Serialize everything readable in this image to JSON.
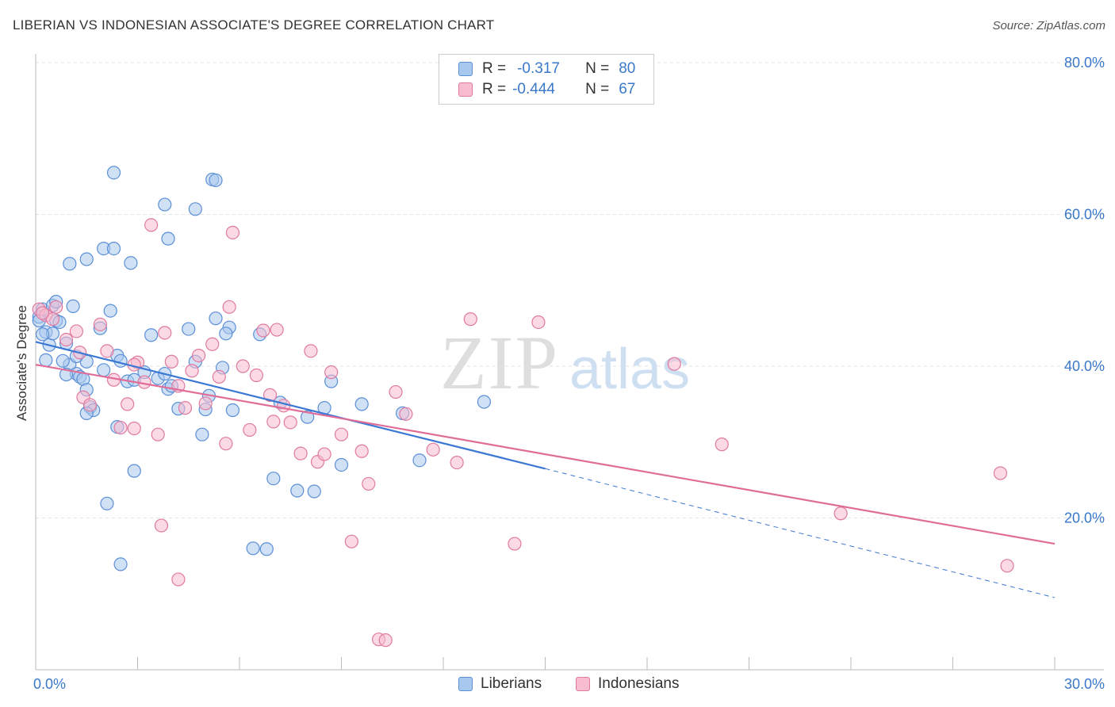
{
  "title": "LIBERIAN VS INDONESIAN ASSOCIATE'S DEGREE CORRELATION CHART",
  "source": "Source: ZipAtlas.com",
  "watermark": {
    "zip": "ZIP",
    "atlas": "atlas"
  },
  "legend": {
    "rows": [
      {
        "r_label": "R =",
        "r_value": "-0.317",
        "n_label": "N =",
        "n_value": "80",
        "color": "#a9c8ee",
        "stroke": "#5b8fd6"
      },
      {
        "r_label": "R =",
        "r_value": "-0.444",
        "n_label": "N =",
        "n_value": "67",
        "color": "#f7bcd0",
        "stroke": "#e07aa0"
      }
    ]
  },
  "bottom_legend": [
    {
      "label": "Liberians",
      "color": "#a9c8ee",
      "stroke": "#5b8fd6"
    },
    {
      "label": "Indonesians",
      "color": "#f7bcd0",
      "stroke": "#e07aa0"
    }
  ],
  "chart_data": {
    "type": "scatter",
    "title": "LIBERIAN VS INDONESIAN ASSOCIATE'S DEGREE CORRELATION CHART",
    "xlabel": "",
    "ylabel": "Associate's Degree",
    "xlim": [
      0,
      30
    ],
    "ylim": [
      0,
      80
    ],
    "x_tick_labels": [
      "0.0%",
      "30.0%"
    ],
    "y_tick_labels": [
      "20.0%",
      "40.0%",
      "60.0%",
      "80.0%"
    ],
    "y_ticks": [
      20,
      40,
      60,
      80
    ],
    "grid": true,
    "legend_position": "top-center",
    "series": [
      {
        "name": "Liberians",
        "color": "#a9c8ee",
        "stroke": "#5b8fd6",
        "trend": {
          "x": [
            0,
            15
          ],
          "y": [
            43.2,
            26.5
          ],
          "dashed_to": [
            30,
            9.5
          ],
          "color": "#3a78d4"
        },
        "points": [
          [
            0.1,
            46.5
          ],
          [
            0.2,
            47.5
          ],
          [
            0.3,
            44.5
          ],
          [
            0.4,
            42.8
          ],
          [
            0.5,
            48.0
          ],
          [
            0.6,
            46.0
          ],
          [
            0.7,
            45.8
          ],
          [
            0.5,
            44.3
          ],
          [
            0.3,
            40.8
          ],
          [
            0.9,
            43.0
          ],
          [
            1.1,
            47.9
          ],
          [
            1.0,
            40.2
          ],
          [
            1.2,
            39.0
          ],
          [
            1.3,
            38.6
          ],
          [
            1.4,
            38.3
          ],
          [
            1.5,
            40.6
          ],
          [
            1.6,
            34.6
          ],
          [
            1.7,
            34.2
          ],
          [
            1.5,
            33.8
          ],
          [
            1.9,
            45.0
          ],
          [
            2.2,
            47.3
          ],
          [
            2.4,
            41.4
          ],
          [
            2.0,
            39.5
          ],
          [
            2.7,
            38.0
          ],
          [
            2.5,
            40.7
          ],
          [
            2.9,
            38.2
          ],
          [
            3.2,
            39.2
          ],
          [
            3.4,
            44.1
          ],
          [
            3.6,
            38.4
          ],
          [
            3.9,
            37.0
          ],
          [
            3.8,
            39.0
          ],
          [
            4.0,
            37.4
          ],
          [
            4.2,
            34.4
          ],
          [
            4.5,
            44.9
          ],
          [
            4.7,
            40.6
          ],
          [
            4.9,
            31.0
          ],
          [
            5.0,
            34.3
          ],
          [
            5.1,
            36.1
          ],
          [
            5.3,
            46.3
          ],
          [
            5.5,
            39.8
          ],
          [
            5.7,
            45.1
          ],
          [
            5.6,
            44.3
          ],
          [
            5.8,
            34.2
          ],
          [
            6.6,
            44.2
          ],
          [
            7.0,
            25.2
          ],
          [
            6.4,
            16.0
          ],
          [
            6.8,
            15.9
          ],
          [
            7.2,
            35.2
          ],
          [
            7.7,
            23.6
          ],
          [
            8.0,
            33.3
          ],
          [
            8.2,
            23.5
          ],
          [
            8.5,
            34.5
          ],
          [
            8.7,
            38.0
          ],
          [
            9.0,
            27.0
          ],
          [
            9.6,
            35.0
          ],
          [
            10.8,
            33.8
          ],
          [
            11.3,
            27.6
          ],
          [
            13.2,
            35.3
          ],
          [
            1.0,
            53.5
          ],
          [
            1.5,
            54.1
          ],
          [
            2.0,
            55.5
          ],
          [
            2.3,
            55.5
          ],
          [
            2.8,
            53.6
          ],
          [
            2.3,
            65.5
          ],
          [
            3.8,
            61.3
          ],
          [
            3.9,
            56.8
          ],
          [
            4.7,
            60.7
          ],
          [
            5.2,
            64.6
          ],
          [
            5.3,
            64.5
          ],
          [
            2.1,
            21.9
          ],
          [
            2.5,
            13.9
          ],
          [
            2.9,
            26.2
          ],
          [
            2.4,
            32.0
          ],
          [
            1.5,
            36.9
          ],
          [
            0.8,
            40.7
          ],
          [
            0.9,
            38.9
          ],
          [
            0.1,
            46.0
          ],
          [
            0.6,
            48.5
          ],
          [
            0.2,
            44.2
          ],
          [
            1.2,
            41.3
          ]
        ]
      },
      {
        "name": "Indonesians",
        "color": "#f7bcd0",
        "stroke": "#e07aa0",
        "trend": {
          "x": [
            0,
            30
          ],
          "y": [
            40.2,
            16.6
          ],
          "color": "#e06c98"
        },
        "points": [
          [
            0.1,
            47.5
          ],
          [
            0.3,
            46.7
          ],
          [
            0.5,
            46.2
          ],
          [
            0.6,
            47.8
          ],
          [
            0.9,
            43.5
          ],
          [
            1.2,
            44.6
          ],
          [
            1.3,
            41.8
          ],
          [
            1.4,
            35.9
          ],
          [
            1.6,
            34.9
          ],
          [
            1.9,
            45.5
          ],
          [
            2.1,
            42.0
          ],
          [
            2.3,
            38.2
          ],
          [
            2.5,
            31.9
          ],
          [
            2.7,
            35.0
          ],
          [
            2.9,
            31.8
          ],
          [
            3.0,
            40.5
          ],
          [
            3.2,
            37.9
          ],
          [
            3.4,
            58.6
          ],
          [
            3.6,
            31.0
          ],
          [
            3.8,
            44.4
          ],
          [
            4.0,
            40.6
          ],
          [
            4.2,
            37.4
          ],
          [
            4.4,
            34.5
          ],
          [
            4.6,
            39.4
          ],
          [
            4.8,
            41.4
          ],
          [
            5.0,
            35.1
          ],
          [
            5.2,
            42.9
          ],
          [
            5.4,
            38.6
          ],
          [
            5.6,
            29.8
          ],
          [
            5.8,
            57.6
          ],
          [
            5.7,
            47.8
          ],
          [
            6.1,
            40.0
          ],
          [
            6.3,
            31.6
          ],
          [
            6.5,
            38.8
          ],
          [
            6.7,
            44.7
          ],
          [
            6.9,
            36.2
          ],
          [
            7.1,
            44.8
          ],
          [
            7.3,
            34.8
          ],
          [
            7.5,
            32.6
          ],
          [
            7.8,
            28.5
          ],
          [
            8.1,
            42.0
          ],
          [
            8.3,
            27.4
          ],
          [
            8.5,
            28.4
          ],
          [
            8.7,
            39.2
          ],
          [
            9.0,
            31.0
          ],
          [
            9.3,
            16.9
          ],
          [
            9.6,
            28.8
          ],
          [
            9.8,
            24.5
          ],
          [
            10.1,
            4.0
          ],
          [
            10.3,
            3.9
          ],
          [
            10.6,
            36.6
          ],
          [
            10.9,
            33.7
          ],
          [
            11.7,
            29.0
          ],
          [
            12.4,
            27.3
          ],
          [
            12.8,
            46.2
          ],
          [
            14.1,
            16.6
          ],
          [
            14.8,
            45.8
          ],
          [
            18.8,
            40.3
          ],
          [
            20.2,
            29.7
          ],
          [
            23.7,
            20.6
          ],
          [
            28.4,
            25.9
          ],
          [
            28.6,
            13.7
          ],
          [
            4.2,
            11.9
          ],
          [
            3.7,
            19.0
          ],
          [
            0.2,
            47.0
          ],
          [
            2.9,
            40.2
          ],
          [
            7.0,
            32.7
          ]
        ]
      }
    ]
  }
}
